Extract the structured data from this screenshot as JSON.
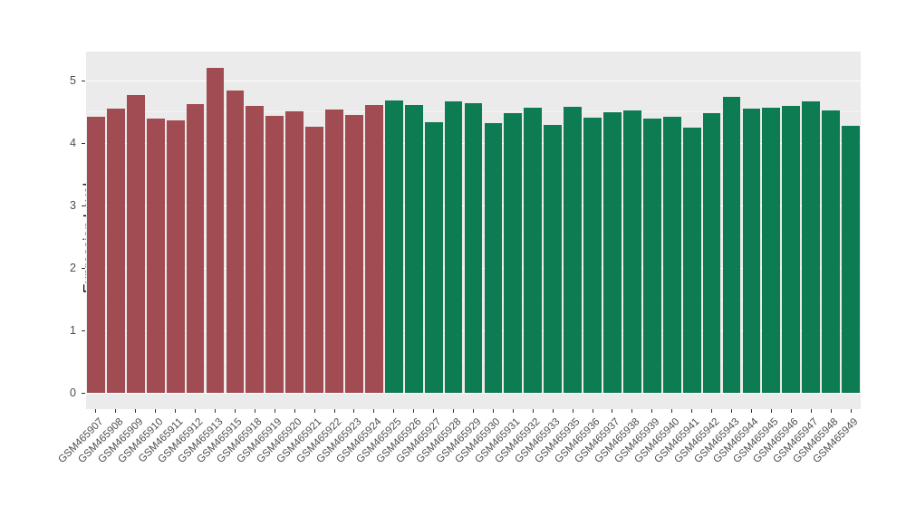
{
  "chart_data": {
    "type": "bar",
    "title": "",
    "xlabel": "",
    "ylabel": "Expression Level",
    "ylim": [
      -0.26,
      5.47
    ],
    "yticks": [
      0,
      1,
      2,
      3,
      4,
      5
    ],
    "yticks_minor": [
      0.5,
      1.5,
      2.5,
      3.5,
      4.5
    ],
    "panel_background": "#EBEBEB",
    "grid": "white major and minor horizontal gridlines",
    "legend": "none",
    "groups": [
      {
        "name": "group-red",
        "color": "#A14C52",
        "labels": [
          "GSM465907",
          "GSM465908",
          "GSM465909",
          "GSM465910",
          "GSM465911",
          "GSM465912",
          "GSM465913",
          "GSM465915",
          "GSM465918",
          "GSM465919",
          "GSM465920",
          "GSM465921",
          "GSM465922",
          "GSM465923",
          "GSM465924"
        ],
        "values": [
          4.42,
          4.56,
          4.78,
          4.39,
          4.37,
          4.63,
          5.21,
          4.85,
          4.6,
          4.44,
          4.51,
          4.26,
          4.54,
          4.45,
          4.62
        ]
      },
      {
        "name": "group-green",
        "color": "#0E7C52",
        "labels": [
          "GSM465925",
          "GSM465926",
          "GSM465927",
          "GSM465928",
          "GSM465929",
          "GSM465930",
          "GSM465931",
          "GSM465932",
          "GSM465933",
          "GSM465935",
          "GSM465936",
          "GSM465937",
          "GSM465938",
          "GSM465939",
          "GSM465940",
          "GSM465941",
          "GSM465942",
          "GSM465943",
          "GSM465944",
          "GSM465945",
          "GSM465946",
          "GSM465947",
          "GSM465948",
          "GSM465949"
        ],
        "values": [
          4.69,
          4.61,
          4.34,
          4.67,
          4.65,
          4.33,
          4.49,
          4.57,
          4.29,
          4.58,
          4.41,
          4.5,
          4.53,
          4.39,
          4.42,
          4.25,
          4.49,
          4.74,
          4.56,
          4.57,
          4.6,
          4.67,
          4.53,
          4.28
        ]
      }
    ]
  }
}
